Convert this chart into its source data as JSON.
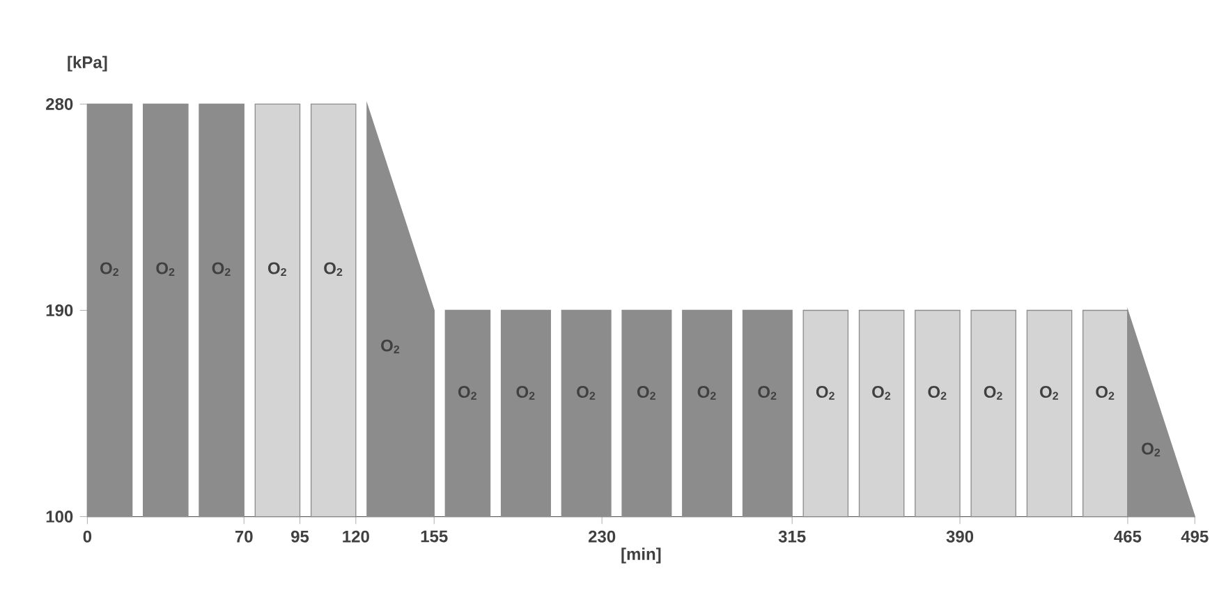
{
  "chart_data": {
    "type": "area",
    "xlabel": "[min]",
    "ylabel": "[kPa]",
    "xlim": [
      0,
      495
    ],
    "ylim": [
      100,
      280
    ],
    "xticks": [
      0,
      70,
      95,
      120,
      155,
      230,
      315,
      390,
      465,
      495
    ],
    "yticks": [
      100,
      190,
      280
    ],
    "series": [
      {
        "name": "O$_{2}$",
        "color": "#8c8c8c",
        "x": [
          0,
          20
        ],
        "values": [
          280,
          280
        ]
      },
      {
        "name": "O$_{2}$",
        "color": "#8c8c8c",
        "x": [
          25,
          45
        ],
        "values": [
          280,
          280
        ]
      },
      {
        "name": "O$_{2}$",
        "color": "#8c8c8c",
        "x": [
          50,
          70
        ],
        "values": [
          280,
          280
        ]
      },
      {
        "name": "O$_{2}$",
        "color": "#d4d4d4",
        "x": [
          75,
          95
        ],
        "values": [
          280,
          280
        ]
      },
      {
        "name": "O$_{2}$",
        "color": "#d4d4d4",
        "x": [
          100,
          120
        ],
        "values": [
          280,
          280
        ]
      },
      {
        "name": "O$_{2}$",
        "color": "#8c8c8c",
        "x": [
          125,
          155
        ],
        "values": [
          280,
          190
        ]
      },
      {
        "name": "O$_{2}$",
        "color": "#8c8c8c",
        "x": [
          160,
          180
        ],
        "values": [
          190,
          190
        ]
      },
      {
        "name": "O$_{2}$",
        "color": "#8c8c8c",
        "x": [
          185,
          207
        ],
        "values": [
          190,
          190
        ]
      },
      {
        "name": "O$_{2}$",
        "color": "#8c8c8c",
        "x": [
          212,
          234
        ],
        "values": [
          190,
          190
        ]
      },
      {
        "name": "O$_{2}$",
        "color": "#8c8c8c",
        "x": [
          239,
          261
        ],
        "values": [
          190,
          190
        ]
      },
      {
        "name": "O$_{2}$",
        "color": "#8c8c8c",
        "x": [
          266,
          288
        ],
        "values": [
          190,
          190
        ]
      },
      {
        "name": "O$_{2}$",
        "color": "#8c8c8c",
        "x": [
          293,
          315
        ],
        "values": [
          190,
          190
        ]
      },
      {
        "name": "O$_{2}$",
        "color": "#d4d4d4",
        "x": [
          320,
          340
        ],
        "values": [
          190,
          190
        ]
      },
      {
        "name": "O$_{2}$",
        "color": "#d4d4d4",
        "x": [
          345,
          365
        ],
        "values": [
          190,
          190
        ]
      },
      {
        "name": "O$_{2}$",
        "color": "#d4d4d4",
        "x": [
          370,
          390
        ],
        "values": [
          190,
          190
        ]
      },
      {
        "name": "O$_{2}$",
        "color": "#d4d4d4",
        "x": [
          395,
          415
        ],
        "values": [
          190,
          190
        ]
      },
      {
        "name": "O$_{2}$",
        "color": "#d4d4d4",
        "x": [
          420,
          440
        ],
        "values": [
          190,
          190
        ]
      },
      {
        "name": "O$_{2}$",
        "color": "#d4d4d4",
        "x": [
          445,
          465
        ],
        "values": [
          190,
          190
        ]
      },
      {
        "name": "O$_{2}$",
        "color": "#8c8c8c",
        "x": [
          465,
          495
        ],
        "values": [
          190,
          100
        ]
      }
    ]
  }
}
